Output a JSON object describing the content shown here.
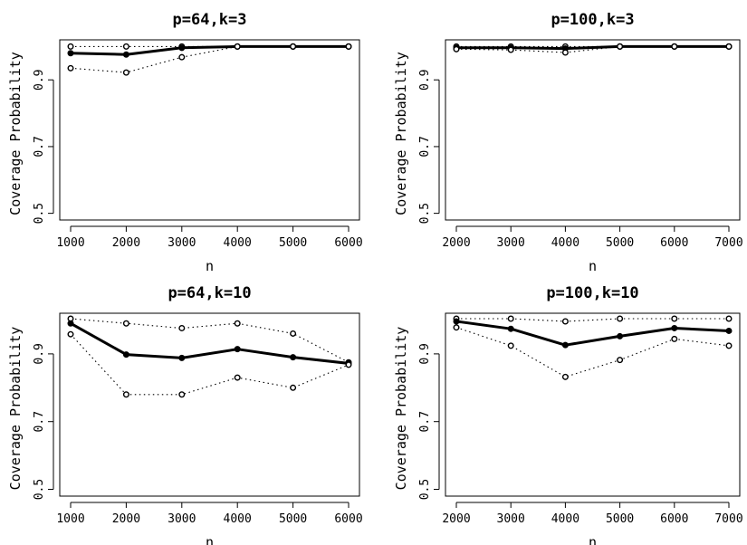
{
  "chart_data": [
    {
      "type": "line",
      "title": "p=64,k=3",
      "xlabel": "n",
      "ylabel": "Coverage Probability",
      "x": [
        1000,
        2000,
        3000,
        4000,
        5000,
        6000
      ],
      "xticks": [
        "1000",
        "2000",
        "3000",
        "4000",
        "5000",
        "6000"
      ],
      "yticks": [
        "0.5",
        "0.7",
        "0.9"
      ],
      "ylim": [
        0.48,
        1.02
      ],
      "series": [
        {
          "style": "dotted-open",
          "values": [
            1.0,
            1.0,
            1.0,
            1.0,
            1.0,
            1.0
          ]
        },
        {
          "style": "solid-filled",
          "values": [
            0.98,
            0.976,
            0.996,
            1.0,
            1.0,
            1.0
          ]
        },
        {
          "style": "dotted-open",
          "values": [
            0.935,
            0.922,
            0.968,
            1.0,
            1.0,
            1.0
          ]
        }
      ]
    },
    {
      "type": "line",
      "title": "p=100,k=3",
      "xlabel": "n",
      "ylabel": "Coverage Probability",
      "x": [
        2000,
        3000,
        4000,
        5000,
        6000,
        7000
      ],
      "xticks": [
        "2000",
        "3000",
        "4000",
        "5000",
        "6000",
        "7000"
      ],
      "yticks": [
        "0.5",
        "0.7",
        "0.9"
      ],
      "ylim": [
        0.48,
        1.02
      ],
      "series": [
        {
          "style": "dotted-open",
          "values": [
            1.0,
            1.0,
            1.0,
            1.0,
            1.0,
            1.0
          ]
        },
        {
          "style": "solid-filled",
          "values": [
            0.996,
            0.996,
            0.994,
            1.0,
            1.0,
            1.0
          ]
        },
        {
          "style": "dotted-open",
          "values": [
            0.992,
            0.99,
            0.982,
            1.0,
            1.0,
            1.0
          ]
        }
      ]
    },
    {
      "type": "line",
      "title": "p=64,k=10",
      "xlabel": "n",
      "ylabel": "Coverage Probability",
      "x": [
        1000,
        2000,
        3000,
        4000,
        5000,
        6000
      ],
      "xticks": [
        "1000",
        "2000",
        "3000",
        "4000",
        "5000",
        "6000"
      ],
      "yticks": [
        "0.5",
        "0.7",
        "0.9"
      ],
      "ylim": [
        0.48,
        1.02
      ],
      "series": [
        {
          "style": "dotted-open",
          "values": [
            1.004,
            0.99,
            0.976,
            0.99,
            0.96,
            0.875
          ]
        },
        {
          "style": "solid-filled",
          "values": [
            0.99,
            0.898,
            0.888,
            0.914,
            0.89,
            0.872
          ]
        },
        {
          "style": "dotted-open",
          "values": [
            0.958,
            0.78,
            0.78,
            0.83,
            0.8,
            0.868
          ]
        }
      ]
    },
    {
      "type": "line",
      "title": "p=100,k=10",
      "xlabel": "n",
      "ylabel": "Coverage Probability",
      "x": [
        2000,
        3000,
        4000,
        5000,
        6000,
        7000
      ],
      "xticks": [
        "2000",
        "3000",
        "4000",
        "5000",
        "6000",
        "7000"
      ],
      "yticks": [
        "0.5",
        "0.7",
        "0.9"
      ],
      "ylim": [
        0.48,
        1.02
      ],
      "series": [
        {
          "style": "dotted-open",
          "values": [
            1.004,
            1.004,
            0.996,
            1.004,
            1.004,
            1.004
          ]
        },
        {
          "style": "solid-filled",
          "values": [
            0.996,
            0.974,
            0.926,
            0.952,
            0.976,
            0.968
          ]
        },
        {
          "style": "dotted-open",
          "values": [
            0.978,
            0.924,
            0.832,
            0.882,
            0.944,
            0.924
          ]
        }
      ]
    }
  ]
}
